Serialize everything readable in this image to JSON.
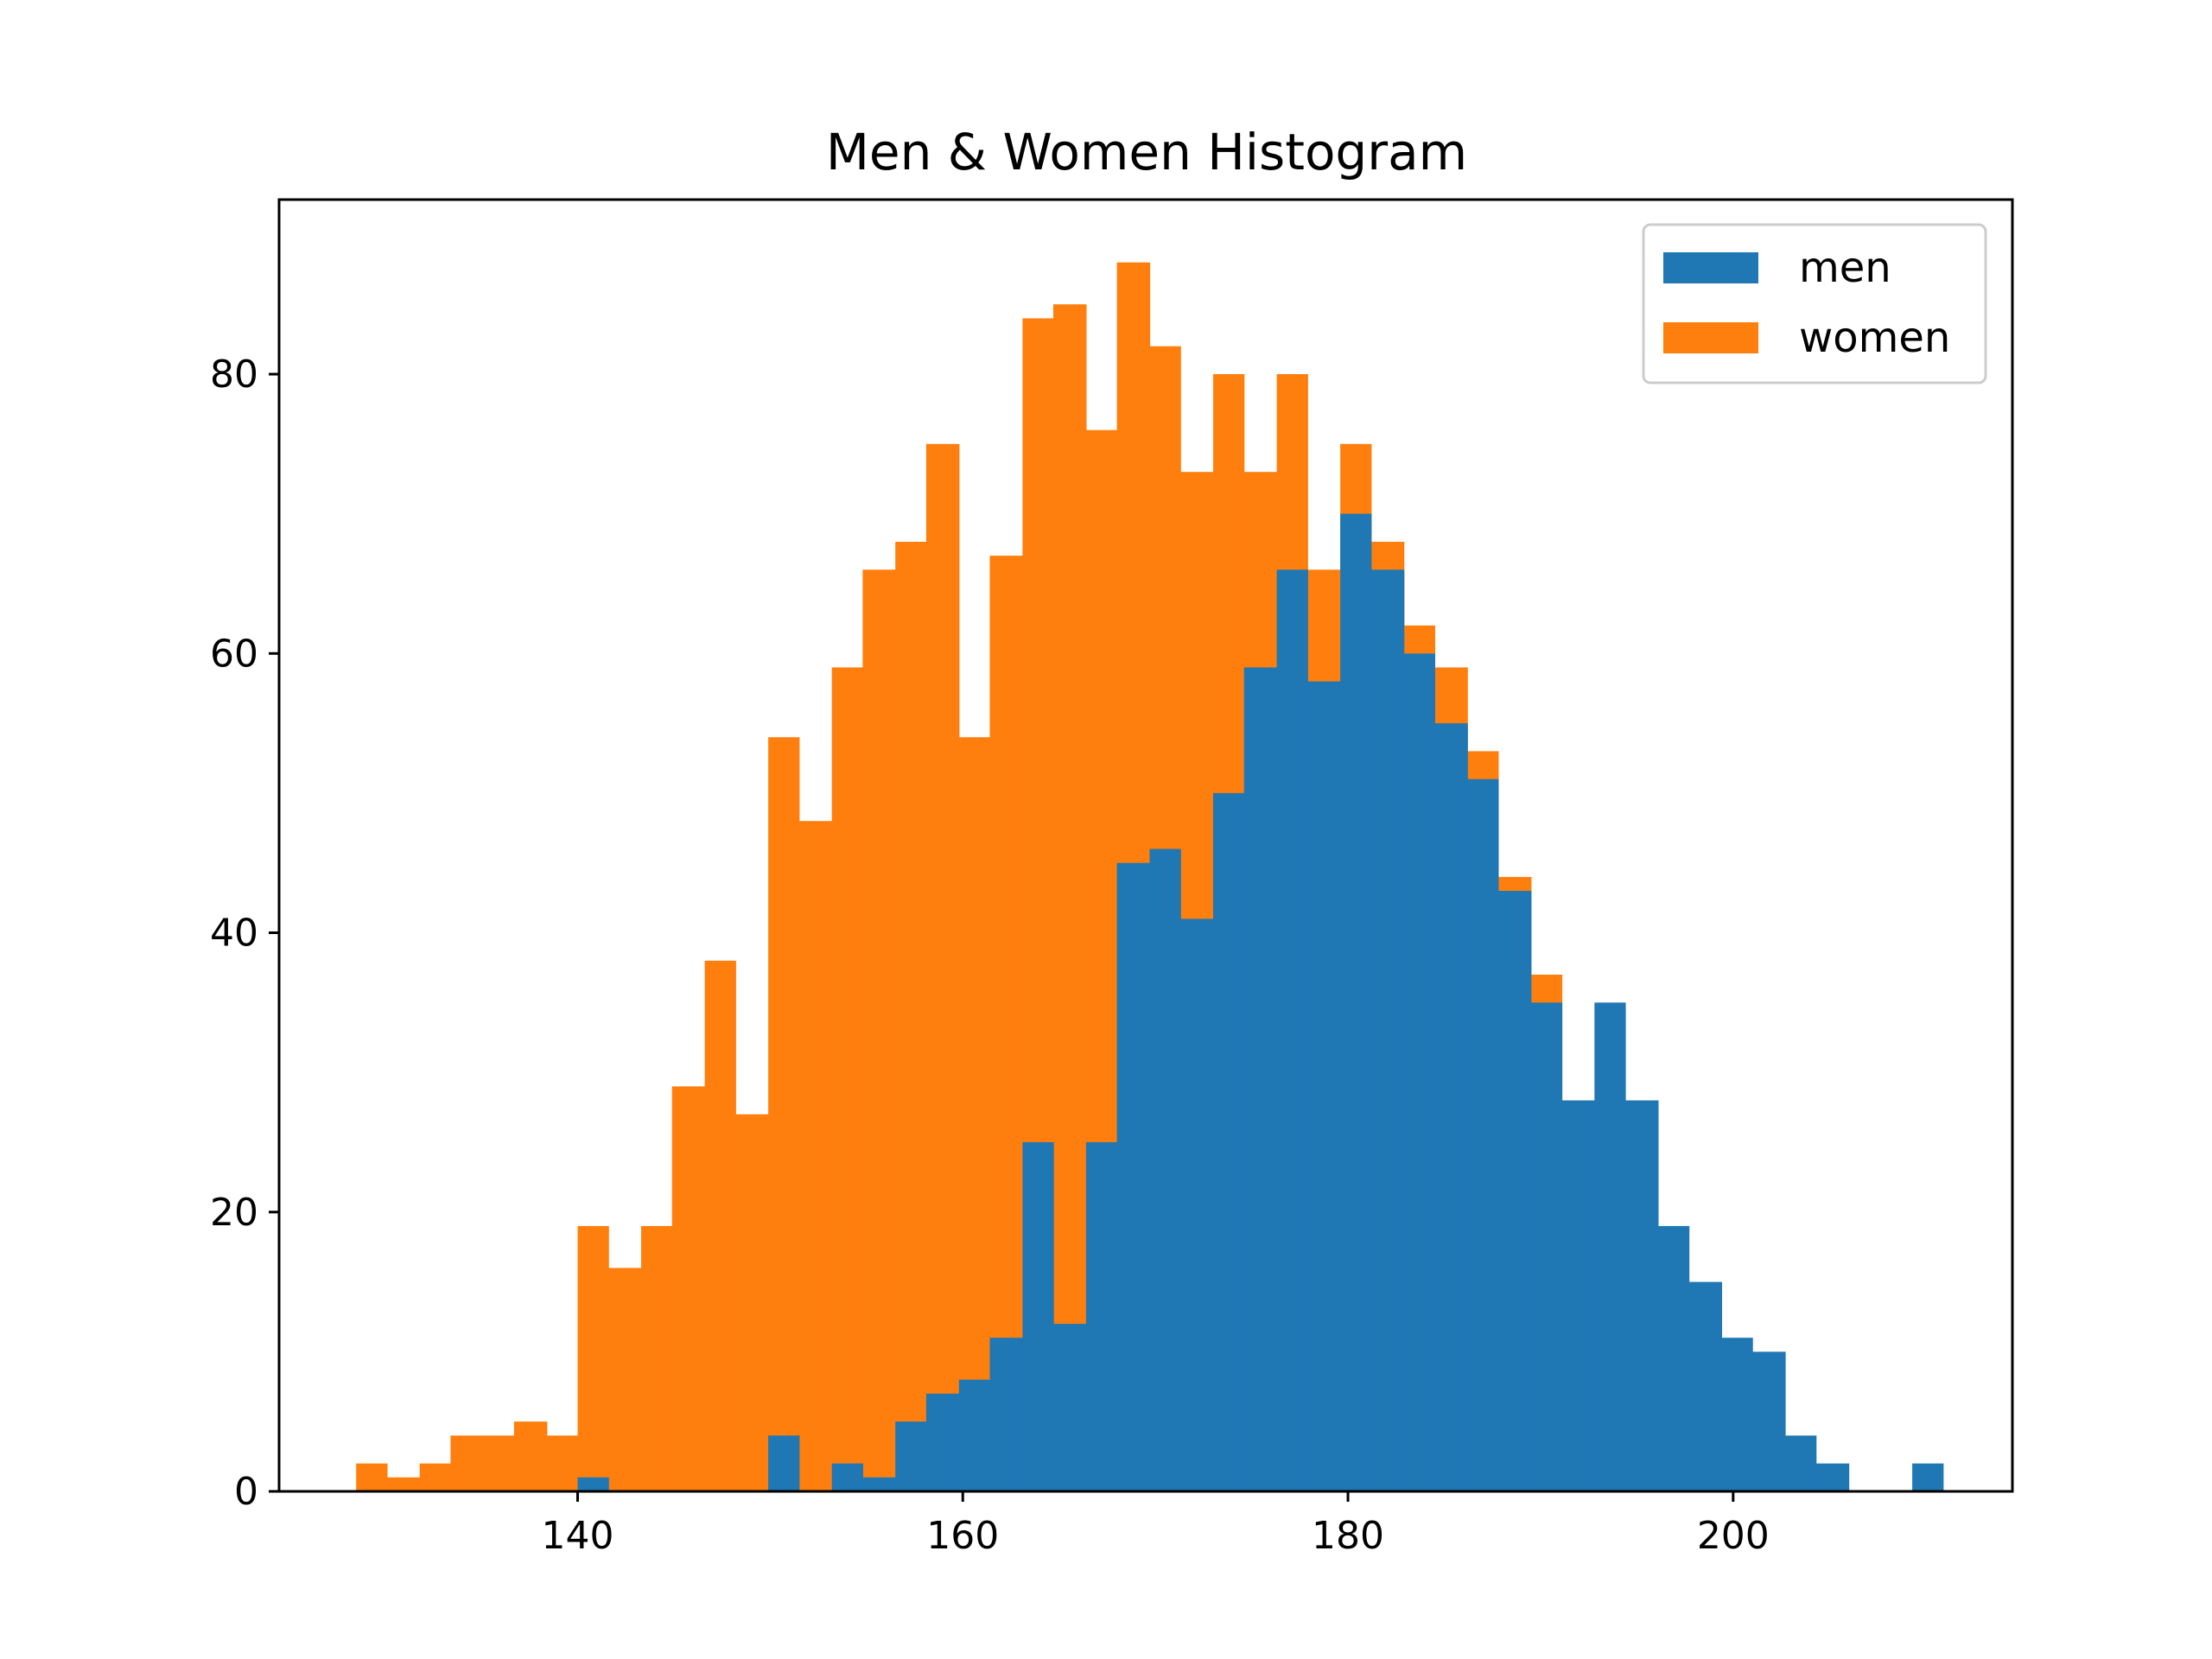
{
  "chart_data": {
    "type": "bar",
    "title": "Men & Women Histogram",
    "xlabel": "",
    "ylabel": "",
    "xlim": [
      124.5,
      214.5
    ],
    "ylim": [
      0,
      92.5
    ],
    "xticks": [
      140,
      160,
      180,
      200
    ],
    "yticks": [
      0,
      20,
      40,
      60,
      80
    ],
    "grid": false,
    "legend_position": "top-right",
    "stacked": true,
    "series": [
      {
        "name": "men",
        "color": "#1f77b4",
        "bins": [
          {
            "x0": 140.0,
            "x1": 141.6,
            "value": 1
          },
          {
            "x0": 149.9,
            "x1": 151.5,
            "value": 4
          },
          {
            "x0": 153.2,
            "x1": 154.8,
            "value": 2
          },
          {
            "x0": 154.8,
            "x1": 156.5,
            "value": 1
          },
          {
            "x0": 156.5,
            "x1": 158.1,
            "value": 5
          },
          {
            "x0": 158.1,
            "x1": 159.8,
            "value": 7
          },
          {
            "x0": 159.8,
            "x1": 161.4,
            "value": 8
          },
          {
            "x0": 161.4,
            "x1": 163.1,
            "value": 11
          },
          {
            "x0": 163.1,
            "x1": 164.7,
            "value": 25
          },
          {
            "x0": 164.7,
            "x1": 166.4,
            "value": 12
          },
          {
            "x0": 166.4,
            "x1": 168.0,
            "value": 25
          },
          {
            "x0": 168.0,
            "x1": 169.7,
            "value": 45
          },
          {
            "x0": 169.7,
            "x1": 171.3,
            "value": 46
          },
          {
            "x0": 171.3,
            "x1": 173.0,
            "value": 41
          },
          {
            "x0": 173.0,
            "x1": 174.6,
            "value": 50
          },
          {
            "x0": 174.6,
            "x1": 176.3,
            "value": 59
          },
          {
            "x0": 176.3,
            "x1": 177.9,
            "value": 66
          },
          {
            "x0": 177.9,
            "x1": 179.6,
            "value": 58
          },
          {
            "x0": 179.6,
            "x1": 181.2,
            "value": 70
          },
          {
            "x0": 181.2,
            "x1": 182.9,
            "value": 66
          },
          {
            "x0": 182.9,
            "x1": 184.5,
            "value": 60
          },
          {
            "x0": 184.5,
            "x1": 186.2,
            "value": 55
          },
          {
            "x0": 186.2,
            "x1": 187.8,
            "value": 51
          },
          {
            "x0": 187.8,
            "x1": 189.5,
            "value": 43
          },
          {
            "x0": 189.5,
            "x1": 191.1,
            "value": 35
          },
          {
            "x0": 191.1,
            "x1": 192.8,
            "value": 28
          },
          {
            "x0": 192.8,
            "x1": 194.4,
            "value": 35
          },
          {
            "x0": 194.4,
            "x1": 196.1,
            "value": 28
          },
          {
            "x0": 196.1,
            "x1": 197.7,
            "value": 19
          },
          {
            "x0": 197.7,
            "x1": 199.4,
            "value": 15
          },
          {
            "x0": 199.4,
            "x1": 201.0,
            "value": 11
          },
          {
            "x0": 201.0,
            "x1": 202.7,
            "value": 10
          },
          {
            "x0": 202.7,
            "x1": 204.3,
            "value": 4
          },
          {
            "x0": 204.3,
            "x1": 206.0,
            "value": 2
          },
          {
            "x0": 209.3,
            "x1": 210.9,
            "value": 2
          }
        ]
      },
      {
        "name": "women",
        "color": "#ff7f0e",
        "bins": [
          {
            "x0": 128.5,
            "x1": 130.1,
            "value": 2
          },
          {
            "x0": 130.1,
            "x1": 131.8,
            "value": 1
          },
          {
            "x0": 131.8,
            "x1": 133.4,
            "value": 2
          },
          {
            "x0": 133.4,
            "x1": 135.1,
            "value": 4
          },
          {
            "x0": 135.1,
            "x1": 136.7,
            "value": 4
          },
          {
            "x0": 136.7,
            "x1": 138.4,
            "value": 5
          },
          {
            "x0": 138.4,
            "x1": 140.0,
            "value": 4
          },
          {
            "x0": 140.0,
            "x1": 141.6,
            "value": 19
          },
          {
            "x0": 141.6,
            "x1": 143.3,
            "value": 16
          },
          {
            "x0": 143.3,
            "x1": 144.9,
            "value": 19
          },
          {
            "x0": 144.9,
            "x1": 146.6,
            "value": 29
          },
          {
            "x0": 146.6,
            "x1": 148.2,
            "value": 38
          },
          {
            "x0": 148.2,
            "x1": 149.9,
            "value": 27
          },
          {
            "x0": 149.9,
            "x1": 151.5,
            "value": 54
          },
          {
            "x0": 151.5,
            "x1": 153.2,
            "value": 48
          },
          {
            "x0": 153.2,
            "x1": 154.8,
            "value": 59
          },
          {
            "x0": 154.8,
            "x1": 156.5,
            "value": 66
          },
          {
            "x0": 156.5,
            "x1": 158.1,
            "value": 68
          },
          {
            "x0": 158.1,
            "x1": 159.8,
            "value": 75
          },
          {
            "x0": 159.8,
            "x1": 161.4,
            "value": 54
          },
          {
            "x0": 161.4,
            "x1": 163.1,
            "value": 67
          },
          {
            "x0": 163.1,
            "x1": 164.7,
            "value": 84
          },
          {
            "x0": 164.7,
            "x1": 166.4,
            "value": 85
          },
          {
            "x0": 166.4,
            "x1": 168.0,
            "value": 76
          },
          {
            "x0": 168.0,
            "x1": 169.7,
            "value": 88
          },
          {
            "x0": 169.7,
            "x1": 171.3,
            "value": 82
          },
          {
            "x0": 171.3,
            "x1": 173.0,
            "value": 73
          },
          {
            "x0": 173.0,
            "x1": 174.6,
            "value": 80
          },
          {
            "x0": 174.6,
            "x1": 176.3,
            "value": 73
          },
          {
            "x0": 176.3,
            "x1": 177.9,
            "value": 80
          },
          {
            "x0": 177.9,
            "x1": 179.6,
            "value": 66
          },
          {
            "x0": 179.6,
            "x1": 181.2,
            "value": 75
          },
          {
            "x0": 181.2,
            "x1": 182.9,
            "value": 68
          },
          {
            "x0": 182.9,
            "x1": 184.5,
            "value": 62
          },
          {
            "x0": 184.5,
            "x1": 186.2,
            "value": 59
          },
          {
            "x0": 186.2,
            "x1": 187.8,
            "value": 53
          },
          {
            "x0": 187.8,
            "x1": 189.5,
            "value": 44
          },
          {
            "x0": 189.5,
            "x1": 191.1,
            "value": 37
          }
        ]
      }
    ]
  }
}
